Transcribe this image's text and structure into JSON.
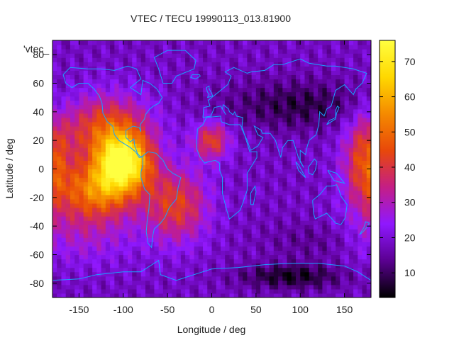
{
  "chart_data": {
    "type": "heatmap",
    "title": "VTEC / TECU 19990113_013.81900",
    "xlabel": "Longitude / deg",
    "ylabel": "Latitude / deg",
    "key_label": "'vtec_",
    "xlim": [
      -180,
      180
    ],
    "ylim": [
      -90,
      90
    ],
    "x_ticks": [
      -150,
      -100,
      -50,
      0,
      50,
      100,
      150
    ],
    "y_ticks": [
      -80,
      -60,
      -40,
      -20,
      0,
      20,
      40,
      60,
      80
    ],
    "colorbar": {
      "range": [
        3,
        76
      ],
      "ticks": [
        10,
        20,
        30,
        40,
        50,
        60,
        70
      ],
      "colors": [
        "#000000",
        "#5a0090",
        "#8f18ff",
        "#c41e86",
        "#e8480a",
        "#f58a00",
        "#ffd800",
        "#ffff40"
      ]
    },
    "coastline_color": "#1aa0ff",
    "features": [
      {
        "name": "equatorial anomaly peak, east Pacific",
        "lon": -100,
        "lat": 5,
        "vtec": 72
      },
      {
        "name": "equatorial anomaly, south Pacific",
        "lon": -130,
        "lat": -15,
        "vtec": 62
      },
      {
        "name": "northern crest, Mexico",
        "lon": -120,
        "lat": 30,
        "vtec": 48
      },
      {
        "name": "southern crest, South Atlantic",
        "lon": -40,
        "lat": -25,
        "vtec": 44
      },
      {
        "name": "West Africa enhancement",
        "lon": 0,
        "lat": 20,
        "vtec": 42
      },
      {
        "name": "far east Pacific enhancement",
        "lon": 175,
        "lat": 5,
        "vtec": 45
      },
      {
        "name": "high-latitude trough, Asia",
        "lon": 100,
        "lat": 45,
        "vtec": 8
      },
      {
        "name": "Antarctic minimum",
        "lon": 90,
        "lat": -75,
        "vtec": 5
      }
    ]
  }
}
